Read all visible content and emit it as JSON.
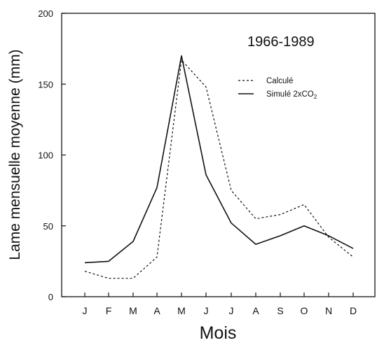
{
  "chart_data": {
    "type": "line",
    "annotation": "1966-1989",
    "xlabel": "Mois",
    "ylabel": "Lame mensuelle moyenne (mm)",
    "categories": [
      "J",
      "F",
      "M",
      "A",
      "M",
      "J",
      "J",
      "A",
      "S",
      "O",
      "N",
      "D"
    ],
    "ylim": [
      0,
      200
    ],
    "yticks": [
      0,
      50,
      100,
      150,
      200
    ],
    "grid": false,
    "legend_position": "top-right",
    "series": [
      {
        "name": "Calculé",
        "style": "dashed",
        "color": "#111111",
        "values": [
          18,
          13,
          13,
          28,
          167,
          148,
          75,
          55,
          58,
          65,
          42,
          28
        ]
      },
      {
        "name": "Simulé 2xCO",
        "name_subscript": "2",
        "style": "solid",
        "color": "#111111",
        "values": [
          24,
          25,
          39,
          77,
          170,
          86,
          52,
          37,
          43,
          50,
          43,
          34
        ]
      }
    ]
  }
}
